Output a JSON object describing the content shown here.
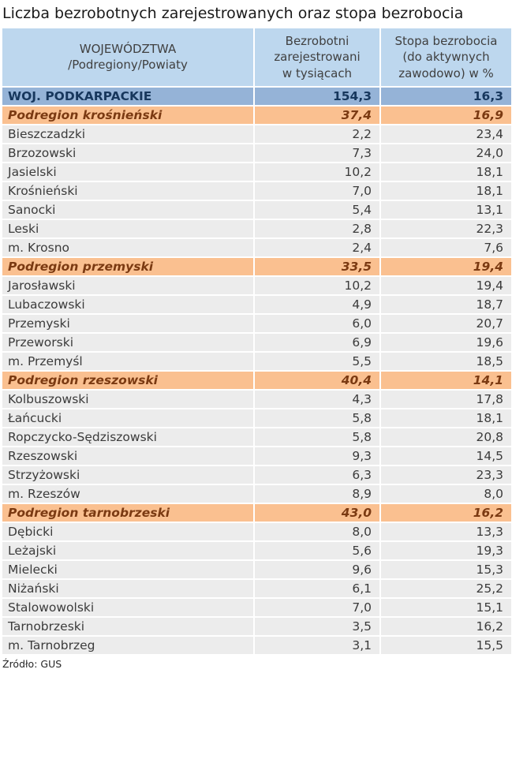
{
  "title": "Liczba bezrobotnych zarejestrowanych oraz stopa bezrobocia",
  "source": "Źródło: GUS",
  "table": {
    "col1_header": "WOJEWÓDZTWA\n/Podregiony/Powiaty",
    "col2_header": "Bezrobotni\nzarejestrowani\nw tysiącach",
    "col3_header": "Stopa bezrobocia\n(do aktywnych\nzawodowo) w %"
  },
  "colors": {
    "header_bg": "#BDD7EE",
    "voivodeship_row_bg": "#95B3D7",
    "subregion_row_bg": "#FAC090",
    "county_row_bg": "#ECECEC",
    "row_divider": "#FFFFFF"
  },
  "chart_data": {
    "type": "table",
    "title": "Liczba bezrobotnych zarejestrowanych oraz stopa bezrobocia",
    "columns": [
      "WOJEWÓDZTWA /Podregiony/Powiaty",
      "Bezrobotni zarejestrowani w tysiącach",
      "Stopa bezrobocia (do aktywnych zawodowo) w %"
    ],
    "rows": [
      {
        "level": "voivodeship",
        "label": "WOJ. PODKARPACKIE",
        "values": [
          "154,3",
          "16,3"
        ]
      },
      {
        "level": "subregion",
        "label": "Podregion krośnieński",
        "values": [
          "37,4",
          "16,9"
        ]
      },
      {
        "level": "county",
        "label": "Bieszczadzki",
        "values": [
          "2,2",
          "23,4"
        ]
      },
      {
        "level": "county",
        "label": "Brzozowski",
        "values": [
          "7,3",
          "24,0"
        ]
      },
      {
        "level": "county",
        "label": "Jasielski",
        "values": [
          "10,2",
          "18,1"
        ]
      },
      {
        "level": "county",
        "label": "Krośnieński",
        "values": [
          "7,0",
          "18,1"
        ]
      },
      {
        "level": "county",
        "label": "Sanocki",
        "values": [
          "5,4",
          "13,1"
        ]
      },
      {
        "level": "county",
        "label": "Leski",
        "values": [
          "2,8",
          "22,3"
        ]
      },
      {
        "level": "county",
        "label": "m. Krosno",
        "values": [
          "2,4",
          "7,6"
        ]
      },
      {
        "level": "subregion",
        "label": "Podregion przemyski",
        "values": [
          "33,5",
          "19,4"
        ]
      },
      {
        "level": "county",
        "label": "Jarosławski",
        "values": [
          "10,2",
          "19,4"
        ]
      },
      {
        "level": "county",
        "label": "Lubaczowski",
        "values": [
          "4,9",
          "18,7"
        ]
      },
      {
        "level": "county",
        "label": "Przemyski",
        "values": [
          "6,0",
          "20,7"
        ]
      },
      {
        "level": "county",
        "label": "Przeworski",
        "values": [
          "6,9",
          "19,6"
        ]
      },
      {
        "level": "county",
        "label": "m. Przemyśl",
        "values": [
          "5,5",
          "18,5"
        ]
      },
      {
        "level": "subregion",
        "label": "Podregion rzeszowski",
        "values": [
          "40,4",
          "14,1"
        ]
      },
      {
        "level": "county",
        "label": "Kolbuszowski",
        "values": [
          "4,3",
          "17,8"
        ]
      },
      {
        "level": "county",
        "label": "Łańcucki",
        "values": [
          "5,8",
          "18,1"
        ]
      },
      {
        "level": "county",
        "label": "Ropczycko-Sędziszowski",
        "values": [
          "5,8",
          "20,8"
        ]
      },
      {
        "level": "county",
        "label": "Rzeszowski",
        "values": [
          "9,3",
          "14,5"
        ]
      },
      {
        "level": "county",
        "label": "Strzyżowski",
        "values": [
          "6,3",
          "23,3"
        ]
      },
      {
        "level": "county",
        "label": "m. Rzeszów",
        "values": [
          "8,9",
          "8,0"
        ]
      },
      {
        "level": "subregion",
        "label": "Podregion tarnobrzeski",
        "values": [
          "43,0",
          "16,2"
        ]
      },
      {
        "level": "county",
        "label": "Dębicki",
        "values": [
          "8,0",
          "13,3"
        ]
      },
      {
        "level": "county",
        "label": "Leżajski",
        "values": [
          "5,6",
          "19,3"
        ]
      },
      {
        "level": "county",
        "label": "Mielecki",
        "values": [
          "9,6",
          "15,3"
        ]
      },
      {
        "level": "county",
        "label": "Niżański",
        "values": [
          "6,1",
          "25,2"
        ]
      },
      {
        "level": "county",
        "label": "Stalowowolski",
        "values": [
          "7,0",
          "15,1"
        ]
      },
      {
        "level": "county",
        "label": "Tarnobrzeski",
        "values": [
          "3,5",
          "16,2"
        ]
      },
      {
        "level": "county",
        "label": "m. Tarnobrzeg",
        "values": [
          "3,1",
          "15,5"
        ]
      }
    ]
  }
}
